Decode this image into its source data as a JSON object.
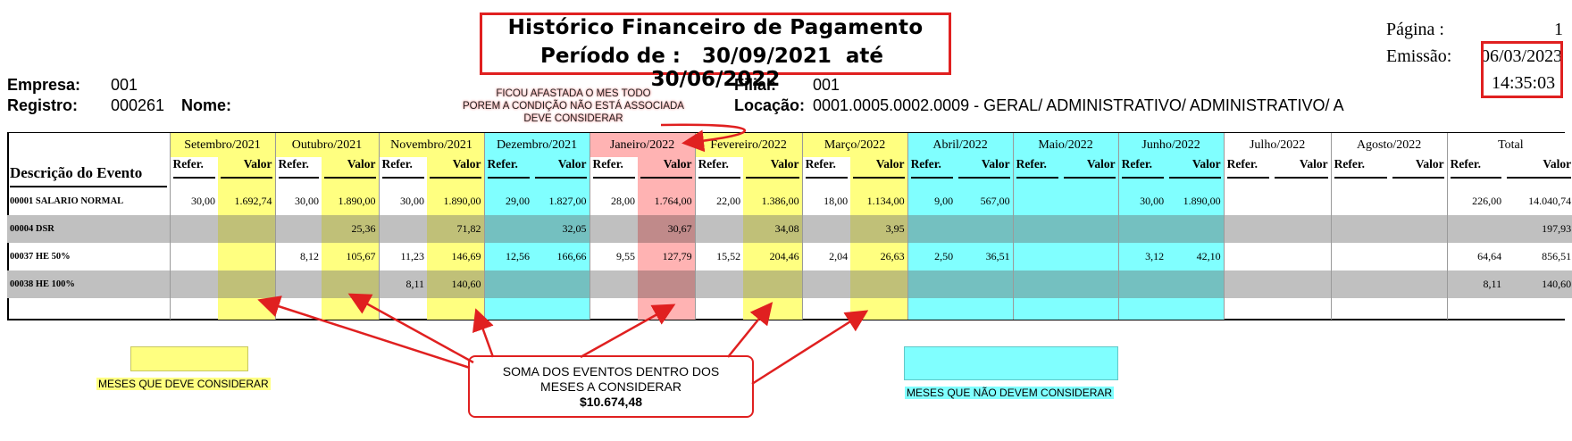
{
  "header": {
    "title": "Histórico Financeiro de Pagamento",
    "period_label": "Período de :",
    "period_start": "30/09/2021",
    "period_sep": "até",
    "period_end": "30/06/2022",
    "page_label": "Página :",
    "page_value": "1",
    "emission_label": "Emissão:",
    "emission_date": "06/03/2023",
    "emission_time": "14:35:03"
  },
  "company": {
    "empresa_label": "Empresa:",
    "empresa_value": "001",
    "registro_label": "Registro:",
    "registro_value": "000261",
    "nome_label": "Nome:",
    "filial_label": "Filial:",
    "filial_value": "001",
    "locacao_label": "Locação:",
    "locacao_value": "0001.0005.0002.0009 - GERAL/ ADMINISTRATIVO/ ADMINISTRATIVO/ A"
  },
  "table": {
    "desc_header": "Descrição do Evento",
    "refer_label": "Refer.",
    "valor_label": "Valor",
    "months": [
      "Setembro/2021",
      "Outubro/2021",
      "Novembro/2021",
      "Dezembro/2021",
      "Janeiro/2022",
      "Fevereiro/2022",
      "Março/2022",
      "Abril/2022",
      "Maio/2022",
      "Junho/2022",
      "Julho/2022",
      "Agosto/2022",
      "Total"
    ],
    "rows": [
      {
        "desc": "00001 SALARIO NORMAL",
        "cells": [
          "30,00",
          "1.692,74",
          "30,00",
          "1.890,00",
          "30,00",
          "1.890,00",
          "29,00",
          "1.827,00",
          "28,00",
          "1.764,00",
          "22,00",
          "1.386,00",
          "18,00",
          "1.134,00",
          "9,00",
          "567,00",
          "",
          "",
          "30,00",
          "1.890,00",
          "",
          "",
          "",
          "",
          "226,00",
          "14.040,74"
        ]
      },
      {
        "desc": "00004 DSR",
        "cells": [
          "",
          "",
          "",
          "25,36",
          "",
          "71,82",
          "",
          "32,05",
          "",
          "30,67",
          "",
          "34,08",
          "",
          "3,95",
          "",
          "",
          "",
          "",
          "",
          "",
          "",
          "",
          "",
          "",
          "",
          "197,93"
        ]
      },
      {
        "desc": "00037 HE 50%",
        "cells": [
          "",
          "",
          "8,12",
          "105,67",
          "11,23",
          "146,69",
          "12,56",
          "166,66",
          "9,55",
          "127,79",
          "15,52",
          "204,46",
          "2,04",
          "26,63",
          "2,50",
          "36,51",
          "",
          "",
          "3,12",
          "42,10",
          "",
          "",
          "",
          "",
          "64,64",
          "856,51"
        ]
      },
      {
        "desc": "00038 HE 100%",
        "cells": [
          "",
          "",
          "",
          "",
          "8,11",
          "140,60",
          "",
          "",
          "",
          "",
          "",
          "",
          "",
          "",
          "",
          "",
          "",
          "",
          "",
          "",
          "",
          "",
          "",
          "",
          "8,11",
          "140,60"
        ]
      }
    ]
  },
  "annotations": {
    "ficou_note": [
      "FICOU AFASTADA O MES TODO",
      "POREM A CONDIÇÃO NÃO ESTÁ ASSOCIADA",
      "DEVE CONSIDERAR"
    ],
    "sum_note": [
      "SOMA DOS EVENTOS DENTRO DOS",
      "MESES A CONSIDERAR"
    ],
    "sum_value": "$10.674,48",
    "legend_consider": "MESES QUE DEVE CONSIDERAR",
    "legend_not_consider": "MESES QUE NÃO DEVEM CONSIDERAR"
  },
  "colors": {
    "consider": "#ffff80",
    "not_consider": "#80ffff",
    "highlight": "#ffb3b3",
    "annotation_red": "#e02020"
  }
}
